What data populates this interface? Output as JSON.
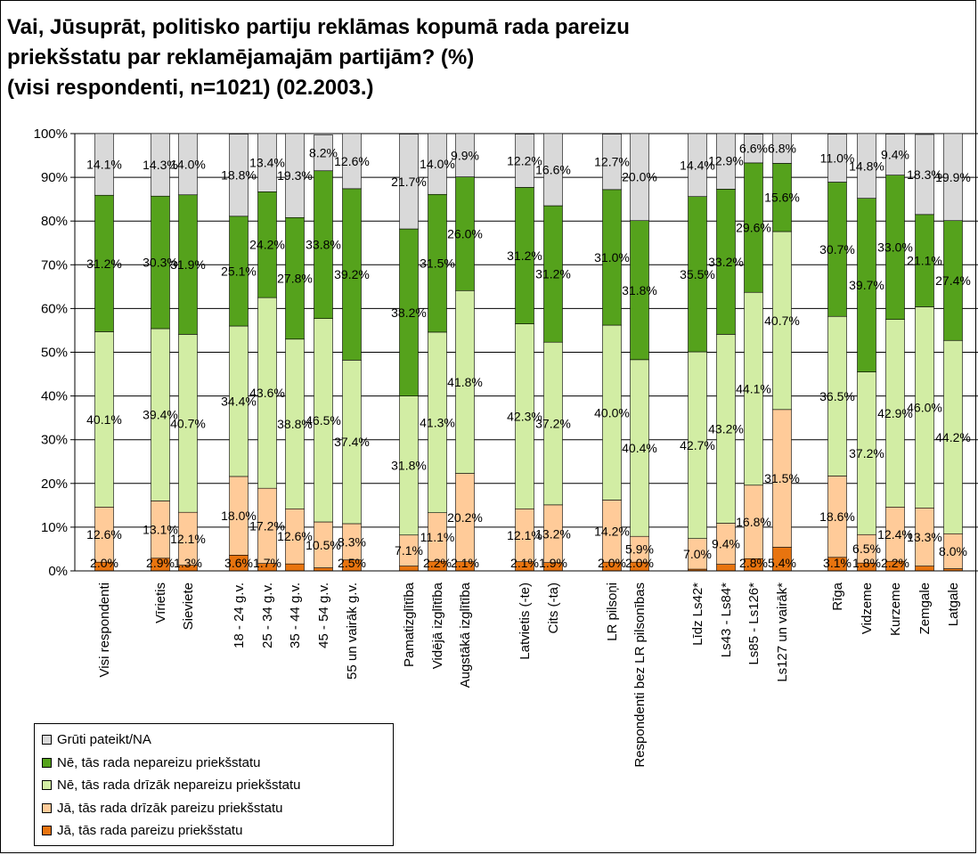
{
  "title_lines": [
    "Vai, Jūsuprāt, politisko partiju reklāmas kopumā rada pareizu",
    "priekšstatu par reklamējamajām partijām? (%)",
    "(visi respondenti, n=1021) (02.2003.)"
  ],
  "chart_data": {
    "type": "bar",
    "stacked": true,
    "ylim": [
      0,
      100
    ],
    "yticks": [
      "0%",
      "10%",
      "20%",
      "30%",
      "40%",
      "50%",
      "60%",
      "70%",
      "80%",
      "90%",
      "100%"
    ],
    "grid": true,
    "legend_position": "bottom-left",
    "categories": [
      "Visi respondenti",
      "Vīrietis",
      "Sieviete",
      "18 - 24 g.v.",
      "25 - 34 g.v.",
      "35 - 44 g.v.",
      "45 - 54 g.v.",
      "55 un vairāk g.v.",
      "Pamatizglītība",
      "Vidējā izglītība",
      "Augstākā izglītība",
      "Latvietis (-te)",
      "Cits (-ta)",
      "LR pilsoņi",
      "Respondenti bez LR pilsonības",
      "Līdz Ls42*",
      "Ls43 - Ls84*",
      "Ls85 - Ls126*",
      "Ls127 un vairāk*",
      "Rīga",
      "Vidzeme",
      "Kurzeme",
      "Zemgale",
      "Latgale"
    ],
    "series": [
      {
        "name": "Jā, tās rada pareizu priekšstatu",
        "color": "#E8740F",
        "values": [
          2.0,
          2.9,
          1.3,
          3.6,
          1.7,
          1.6,
          0.7,
          2.5,
          1.1,
          2.2,
          2.1,
          2.1,
          1.9,
          2.0,
          2.0,
          0.4,
          1.5,
          2.8,
          5.4,
          3.1,
          1.8,
          2.2,
          1.1,
          0.5
        ],
        "labels": [
          "2.0%",
          "2.9%",
          "1.3%",
          "3.6%",
          "1.7%",
          "",
          "",
          "2.5%",
          "",
          "2.2%",
          "2.1%",
          "2.1%",
          "1.9%",
          "2.0%",
          "2.0%",
          "",
          "",
          "2.8%",
          "5.4%",
          "3.1%",
          "1.8%",
          "2.2%",
          "",
          ""
        ]
      },
      {
        "name": "Jā, tās rada drīzāk pareizu priekšstatu",
        "color": "#FFCB99",
        "values": [
          12.6,
          13.1,
          12.1,
          18.0,
          17.2,
          12.6,
          10.5,
          8.3,
          7.1,
          11.1,
          20.2,
          12.1,
          13.2,
          14.2,
          5.9,
          7.0,
          9.4,
          16.8,
          31.5,
          18.6,
          6.5,
          12.4,
          13.3,
          8.0
        ],
        "labels": [
          "12.6%",
          "13.1%",
          "12.1%",
          "18.0%",
          "17.2%",
          "12.6%",
          "10.5%",
          "8.3%",
          "7.1%",
          "11.1%",
          "20.2%",
          "12.1%",
          "13.2%",
          "14.2%",
          "5.9%",
          "7.0%",
          "9.4%",
          "16.8%",
          "31.5%",
          "18.6%",
          "6.5%",
          "12.4%",
          "13.3%",
          "8.0%"
        ]
      },
      {
        "name": "Nē, tās rada drīzāk nepareizu priekšstatu",
        "color": "#D2EDA4",
        "values": [
          40.1,
          39.4,
          40.7,
          34.4,
          43.6,
          38.8,
          46.5,
          37.4,
          31.8,
          41.3,
          41.8,
          42.3,
          37.2,
          40.0,
          40.4,
          42.7,
          43.2,
          44.1,
          40.7,
          36.5,
          37.2,
          42.9,
          46.0,
          44.2
        ],
        "labels": [
          "40.1%",
          "39.4%",
          "40.7%",
          "34.4%",
          "43.6%",
          "38.8%",
          "46.5%",
          "37.4%",
          "31.8%",
          "41.3%",
          "41.8%",
          "42.3%",
          "37.2%",
          "40.0%",
          "40.4%",
          "42.7%",
          "43.2%",
          "44.1%",
          "40.7%",
          "36.5%",
          "37.2%",
          "42.9%",
          "46.0%",
          "44.2%"
        ]
      },
      {
        "name": "Nē, tās rada nepareizu priekšstatu",
        "color": "#55A21C",
        "values": [
          31.2,
          30.3,
          31.9,
          25.1,
          24.2,
          27.8,
          33.8,
          39.2,
          38.2,
          31.5,
          26.0,
          31.2,
          31.2,
          31.0,
          31.8,
          35.5,
          33.2,
          29.6,
          15.6,
          30.7,
          39.7,
          33.0,
          21.1,
          27.4
        ],
        "labels": [
          "31.2%",
          "30.3%",
          "31.9%",
          "25.1%",
          "24.2%",
          "27.8%",
          "33.8%",
          "39.2%",
          "38.2%",
          "31.5%",
          "26.0%",
          "31.2%",
          "31.2%",
          "31.0%",
          "31.8%",
          "35.5%",
          "33.2%",
          "29.6%",
          "15.6%",
          "30.7%",
          "39.7%",
          "33.0%",
          "21.1%",
          "27.4%"
        ]
      },
      {
        "name": "Grūti pateikt/NA",
        "color": "#D9D9D9",
        "values": [
          14.1,
          14.3,
          14.0,
          18.8,
          13.4,
          19.3,
          8.2,
          12.6,
          21.7,
          14.0,
          9.9,
          12.2,
          16.6,
          12.7,
          20.0,
          14.4,
          12.9,
          6.6,
          6.8,
          11.0,
          14.8,
          9.4,
          18.3,
          19.9
        ],
        "labels": [
          "14.1%",
          "14.3%",
          "14.0%",
          "18.8%",
          "13.4%",
          "19.3%",
          "8.2%",
          "12.6%",
          "21.7%",
          "14.0%",
          "9.9%",
          "12.2%",
          "16.6%",
          "12.7%",
          "20.0%",
          "14.4%",
          "12.9%",
          "6.6%",
          "6.8%",
          "11.0%",
          "14.8%",
          "9.4%",
          "18.3%",
          "19.9%"
        ]
      }
    ]
  }
}
